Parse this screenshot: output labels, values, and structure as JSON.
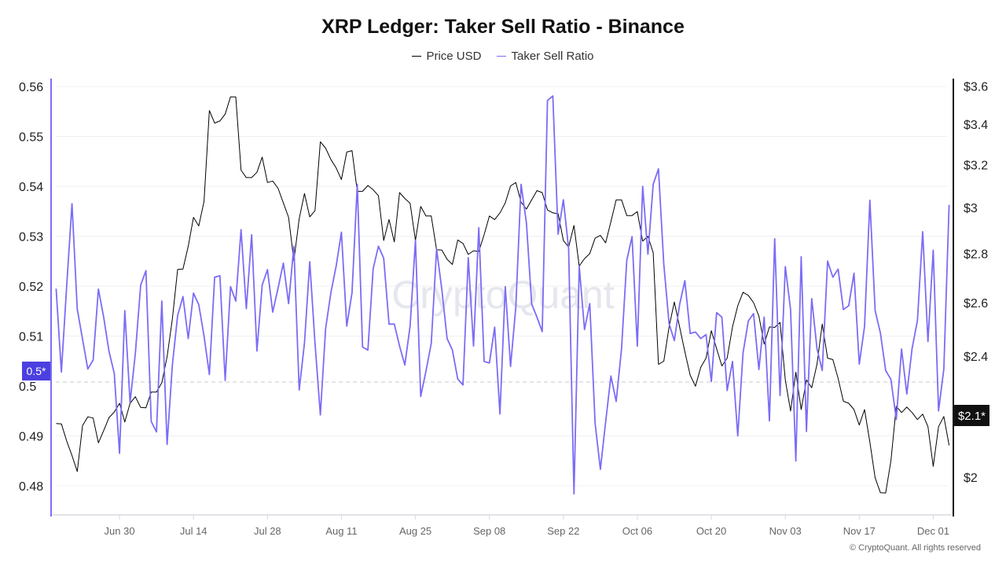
{
  "chart_data": {
    "type": "line",
    "title": "XRP Ledger: Taker Sell Ratio - Binance",
    "legend": [
      "Price USD",
      "Taker Sell Ratio"
    ],
    "legend_placement": "top-center",
    "grid": true,
    "watermark": "CryptoQuant",
    "copyright": "© CryptoQuant. All rights reserved",
    "x_ticks": [
      "Jun 30",
      "Jul 14",
      "Jul 28",
      "Aug 11",
      "Aug 25",
      "Sep 08",
      "Sep 22",
      "Oct 06",
      "Oct 20",
      "Nov 03",
      "Nov 17",
      "Dec 01"
    ],
    "y_left": {
      "ticks": [
        "0.56",
        "0.55",
        "0.54",
        "0.53",
        "0.52",
        "0.51",
        "0.5",
        "0.49",
        "0.48"
      ],
      "tick_values": [
        0.56,
        0.55,
        0.54,
        0.53,
        0.52,
        0.51,
        0.5,
        0.49,
        0.48
      ],
      "range": [
        0.4755,
        0.5635
      ],
      "reference_line": 0.5,
      "reference_label": "0.5*",
      "color": "#7b6cf6"
    },
    "y_right": {
      "scale": "log",
      "ticks": [
        "$3.6",
        "$3.4",
        "$3.2",
        "$3",
        "$2.8",
        "$2.6",
        "$2.4",
        "$2"
      ],
      "tick_values": [
        3.6,
        3.4,
        3.2,
        3.0,
        2.8,
        2.6,
        2.4,
        2.0
      ],
      "current_label": "$2.1*",
      "color": "#000000"
    },
    "x": [
      "Jun 18",
      "Jun 19",
      "Jun 20",
      "Jun 21",
      "Jun 22",
      "Jun 23",
      "Jun 24",
      "Jun 25",
      "Jun 26",
      "Jun 27",
      "Jun 28",
      "Jun 29",
      "Jun 30",
      "Jul 01",
      "Jul 02",
      "Jul 03",
      "Jul 04",
      "Jul 05",
      "Jul 06",
      "Jul 07",
      "Jul 08",
      "Jul 09",
      "Jul 10",
      "Jul 11",
      "Jul 12",
      "Jul 13",
      "Jul 14",
      "Jul 15",
      "Jul 16",
      "Jul 17",
      "Jul 18",
      "Jul 19",
      "Jul 20",
      "Jul 21",
      "Jul 22",
      "Jul 23",
      "Jul 24",
      "Jul 25",
      "Jul 26",
      "Jul 27",
      "Jul 28",
      "Jul 29",
      "Jul 30",
      "Jul 31",
      "Aug 01",
      "Aug 02",
      "Aug 03",
      "Aug 04",
      "Aug 05",
      "Aug 06",
      "Aug 07",
      "Aug 08",
      "Aug 09",
      "Aug 10",
      "Aug 11",
      "Aug 12",
      "Aug 13",
      "Aug 14",
      "Aug 15",
      "Aug 16",
      "Aug 17",
      "Aug 18",
      "Aug 19",
      "Aug 20",
      "Aug 21",
      "Aug 22",
      "Aug 23",
      "Aug 24",
      "Aug 25",
      "Aug 26",
      "Aug 27",
      "Aug 28",
      "Aug 29",
      "Aug 30",
      "Aug 31",
      "Sep 01",
      "Sep 02",
      "Sep 03",
      "Sep 04",
      "Sep 05",
      "Sep 06",
      "Sep 07",
      "Sep 08",
      "Sep 09",
      "Sep 10",
      "Sep 11",
      "Sep 12",
      "Sep 13",
      "Sep 14",
      "Sep 15",
      "Sep 16",
      "Sep 17",
      "Sep 18",
      "Sep 19",
      "Sep 20",
      "Sep 21",
      "Sep 22",
      "Sep 23",
      "Sep 24",
      "Sep 25",
      "Sep 26",
      "Sep 27",
      "Sep 28",
      "Sep 29",
      "Sep 30",
      "Oct 01",
      "Oct 02",
      "Oct 03",
      "Oct 04",
      "Oct 05",
      "Oct 06",
      "Oct 07",
      "Oct 08",
      "Oct 09",
      "Oct 10",
      "Oct 11",
      "Oct 12",
      "Oct 13",
      "Oct 14",
      "Oct 15",
      "Oct 16",
      "Oct 17",
      "Oct 18",
      "Oct 19",
      "Oct 20",
      "Oct 21",
      "Oct 22",
      "Oct 23",
      "Oct 24",
      "Oct 25",
      "Oct 26",
      "Oct 27",
      "Oct 28",
      "Oct 29",
      "Oct 30",
      "Oct 31",
      "Nov 01",
      "Nov 02",
      "Nov 03",
      "Nov 04",
      "Nov 05",
      "Nov 06",
      "Nov 07",
      "Nov 08",
      "Nov 09",
      "Nov 10",
      "Nov 11",
      "Nov 12",
      "Nov 13",
      "Nov 14",
      "Nov 15",
      "Nov 16",
      "Nov 17",
      "Nov 18",
      "Nov 19",
      "Nov 20",
      "Nov 21",
      "Nov 22",
      "Nov 23",
      "Nov 24",
      "Nov 25",
      "Nov 26",
      "Nov 27",
      "Nov 28",
      "Nov 29",
      "Nov 30",
      "Dec 01",
      "Dec 02",
      "Dec 03",
      "Dec 04"
    ],
    "series": [
      {
        "name": "Price USD",
        "axis": "right",
        "color": "#000000",
        "values": [
          2.168,
          2.167,
          2.112,
          2.066,
          2.017,
          2.161,
          2.19,
          2.186,
          2.106,
          2.145,
          2.187,
          2.206,
          2.235,
          2.173,
          2.235,
          2.257,
          2.221,
          2.22,
          2.273,
          2.273,
          2.305,
          2.397,
          2.537,
          2.733,
          2.735,
          2.83,
          2.956,
          2.918,
          3.028,
          3.471,
          3.406,
          3.417,
          3.452,
          3.543,
          3.543,
          3.173,
          3.138,
          3.138,
          3.163,
          3.236,
          3.115,
          3.122,
          3.088,
          3.021,
          2.956,
          2.769,
          2.95,
          3.064,
          2.958,
          2.986,
          3.312,
          3.28,
          3.225,
          3.184,
          3.129,
          3.261,
          3.268,
          3.074,
          3.074,
          3.101,
          3.081,
          3.054,
          2.855,
          2.946,
          2.849,
          3.068,
          3.041,
          3.019,
          2.855,
          3.005,
          2.962,
          2.962,
          2.815,
          2.814,
          2.775,
          2.754,
          2.857,
          2.842,
          2.796,
          2.811,
          2.808,
          2.88,
          2.962,
          2.946,
          2.976,
          3.021,
          3.099,
          3.115,
          3.024,
          2.993,
          3.035,
          3.077,
          3.068,
          2.989,
          2.976,
          2.972,
          2.855,
          2.827,
          2.92,
          2.747,
          2.778,
          2.799,
          2.865,
          2.877,
          2.845,
          2.937,
          3.035,
          3.035,
          2.964,
          2.964,
          2.982,
          2.852,
          2.873,
          2.803,
          2.37,
          2.381,
          2.507,
          2.603,
          2.507,
          2.415,
          2.331,
          2.293,
          2.359,
          2.392,
          2.493,
          2.426,
          2.364,
          2.392,
          2.507,
          2.588,
          2.641,
          2.629,
          2.6,
          2.548,
          2.443,
          2.507,
          2.505,
          2.524,
          2.315,
          2.209,
          2.342,
          2.214,
          2.315,
          2.288,
          2.37,
          2.518,
          2.392,
          2.387,
          2.32,
          2.242,
          2.235,
          2.214,
          2.163,
          2.214,
          2.108,
          1.998,
          1.954,
          1.953,
          2.05,
          2.225,
          2.204,
          2.222,
          2.204,
          2.181,
          2.199,
          2.158,
          2.033,
          2.158,
          2.191,
          2.098
        ]
      },
      {
        "name": "Taker Sell Ratio",
        "axis": "left",
        "color": "#7b6cf6",
        "values": [
          0.5195,
          0.5028,
          0.5199,
          0.5365,
          0.5154,
          0.5094,
          0.5034,
          0.5052,
          0.5194,
          0.5138,
          0.507,
          0.5025,
          0.4865,
          0.5151,
          0.4967,
          0.5065,
          0.5202,
          0.5231,
          0.4929,
          0.4908,
          0.517,
          0.4883,
          0.5042,
          0.5141,
          0.5179,
          0.5095,
          0.5186,
          0.5163,
          0.51,
          0.5023,
          0.5218,
          0.5221,
          0.5011,
          0.5199,
          0.517,
          0.5313,
          0.5155,
          0.5303,
          0.507,
          0.5202,
          0.5233,
          0.5148,
          0.5196,
          0.5246,
          0.5165,
          0.528,
          0.4992,
          0.5086,
          0.5249,
          0.5086,
          0.4942,
          0.5115,
          0.5187,
          0.524,
          0.5308,
          0.512,
          0.5187,
          0.5404,
          0.5078,
          0.5072,
          0.5235,
          0.528,
          0.5256,
          0.5124,
          0.5124,
          0.508,
          0.5042,
          0.512,
          0.5292,
          0.4979,
          0.503,
          0.5085,
          0.5274,
          0.5193,
          0.5095,
          0.5072,
          0.5014,
          0.5002,
          0.5257,
          0.508,
          0.5317,
          0.5049,
          0.5046,
          0.5118,
          0.4944,
          0.5199,
          0.5039,
          0.5158,
          0.5404,
          0.5327,
          0.5164,
          0.5138,
          0.5109,
          0.5572,
          0.5581,
          0.5304,
          0.5373,
          0.5275,
          0.4784,
          0.524,
          0.5113,
          0.5165,
          0.4925,
          0.4833,
          0.4928,
          0.502,
          0.4969,
          0.5074,
          0.5252,
          0.5299,
          0.508,
          0.54,
          0.5264,
          0.5404,
          0.5435,
          0.5244,
          0.5125,
          0.5091,
          0.5163,
          0.5211,
          0.5105,
          0.5108,
          0.5095,
          0.5103,
          0.5009,
          0.5147,
          0.5138,
          0.4991,
          0.5049,
          0.49,
          0.5066,
          0.513,
          0.5145,
          0.5033,
          0.5138,
          0.493,
          0.5295,
          0.4981,
          0.5239,
          0.5153,
          0.485,
          0.5259,
          0.4909,
          0.5175,
          0.5075,
          0.5031,
          0.525,
          0.5218,
          0.5234,
          0.5153,
          0.5161,
          0.5226,
          0.5044,
          0.5119,
          0.5372,
          0.5151,
          0.5106,
          0.5031,
          0.5013,
          0.4933,
          0.5074,
          0.4984,
          0.5075,
          0.5131,
          0.5309,
          0.5089,
          0.5272,
          0.495,
          0.5034,
          0.5363
        ]
      }
    ]
  }
}
